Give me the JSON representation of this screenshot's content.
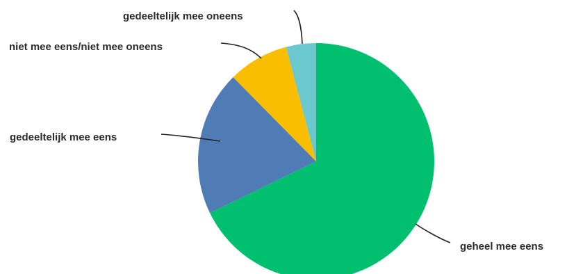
{
  "chart_data": {
    "type": "pie",
    "start_angle": "12 o'clock, clockwise",
    "slices": [
      {
        "label": "geheel mee eens",
        "value": 67.8,
        "color": "#00bf6f"
      },
      {
        "label": "gedeeltelijk mee eens",
        "value": 19.8,
        "color": "#507cb6"
      },
      {
        "label": "niet mee eens/niet mee oneens",
        "value": 8.3,
        "color": "#f9be00"
      },
      {
        "label": "gedeeltelijk mee oneens",
        "value": 4.1,
        "color": "#6bc8cd"
      }
    ]
  }
}
